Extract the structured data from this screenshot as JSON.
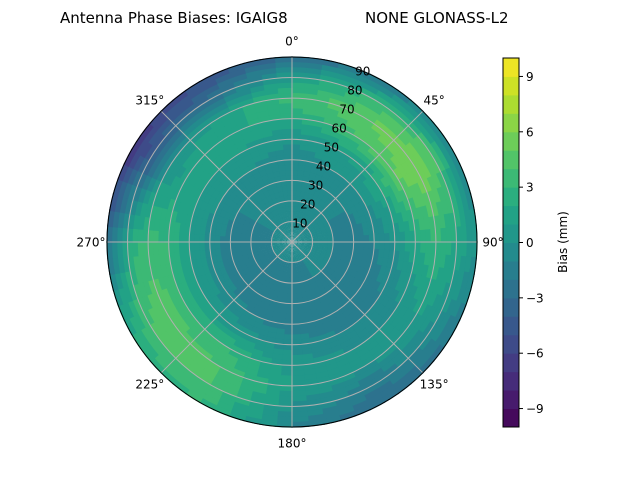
{
  "chart_data": {
    "type": "heatmap",
    "subtype": "polar-filled-contour",
    "title_left": "Antenna Phase Biases: IGAIG8",
    "title_right": "NONE GLONASS-L2",
    "colormap": "viridis",
    "angular_direction": "clockwise",
    "angular_zero": "top",
    "angular_ticks": [
      "0°",
      "45°",
      "90°",
      "135°",
      "180°",
      "225°",
      "270°",
      "315°"
    ],
    "angular_tick_values": [
      0,
      45,
      90,
      135,
      180,
      225,
      270,
      315
    ],
    "radial_ticks": [
      "10",
      "20",
      "30",
      "40",
      "50",
      "60",
      "70",
      "80",
      "90"
    ],
    "radial_tick_values": [
      10,
      20,
      30,
      40,
      50,
      60,
      70,
      80,
      90
    ],
    "rlim": [
      0,
      90
    ],
    "grid": true,
    "azimuths": [
      0,
      30,
      60,
      90,
      120,
      150,
      180,
      210,
      240,
      270,
      300,
      330
    ],
    "zenith": [
      0,
      10,
      20,
      30,
      40,
      50,
      60,
      70,
      80,
      90
    ],
    "values": [
      [
        -1,
        -1,
        -1,
        -1,
        -0.5,
        0,
        2,
        3.5,
        1,
        -3
      ],
      [
        -1,
        -1,
        -1,
        -1,
        0,
        1,
        4,
        5,
        3,
        -2
      ],
      [
        -1,
        -1,
        -1,
        -1,
        0,
        2,
        5,
        6,
        4,
        -1
      ],
      [
        -1,
        -1,
        -1,
        -1.5,
        -1,
        0,
        2,
        3,
        2,
        0
      ],
      [
        -1,
        -1,
        -1,
        -1.5,
        -1.5,
        -1,
        0,
        1,
        0,
        -2
      ],
      [
        -1,
        -1,
        -1,
        -1.5,
        -1.5,
        -1,
        0,
        0,
        -2,
        -3
      ],
      [
        -1,
        -1,
        -1.5,
        -2,
        -1.5,
        -0.5,
        0.5,
        1,
        0,
        -1
      ],
      [
        -1,
        -1,
        -1.5,
        -2,
        -1,
        0.5,
        3,
        4,
        4,
        3
      ],
      [
        -1,
        -1,
        -1.5,
        -1.5,
        -0.5,
        1,
        3,
        5,
        4,
        2
      ],
      [
        -1,
        -1,
        -1.5,
        -1.5,
        -0.5,
        1,
        3,
        3.5,
        2,
        -3
      ],
      [
        -1,
        -1,
        -1,
        -1,
        0,
        1,
        1.5,
        0,
        -4,
        -7
      ],
      [
        -1,
        -1,
        -1,
        -1,
        0,
        1,
        2,
        1,
        -3,
        -5
      ]
    ],
    "colorbar": {
      "label": "Bias (mm)",
      "range": [
        -10,
        10
      ],
      "level_step": 1,
      "ticks": [
        "−9",
        "−6",
        "−3",
        "0",
        "3",
        "6",
        "9"
      ],
      "tick_values": [
        -9,
        -6,
        -3,
        0,
        3,
        6,
        9
      ]
    }
  }
}
